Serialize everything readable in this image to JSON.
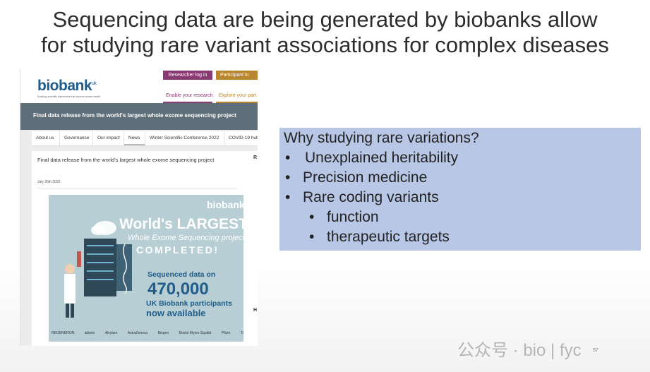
{
  "slide": {
    "title_line1": "Sequencing data are being generated by biobanks allow",
    "title_line2": "for studying rare variant associations for complex diseases",
    "page_number": "57"
  },
  "website": {
    "logo": "biobank",
    "logo_sup": "uk",
    "tagline": "Enabling scientific discoveries that improve human health",
    "researcher_login": "Researcher log in",
    "participant_login": "Participant lo",
    "enable_research": "Enable your research",
    "explore_participation": "Explore your part",
    "banner_title": "Final data release from the world's largest whole exome sequencing project",
    "nav": [
      "About us",
      "Governance",
      "Our impact",
      "News",
      "Winter Scientific Conference 2022",
      "COVID-19 hub"
    ],
    "article_title": "Final data release from the world's largest whole exome sequencing project",
    "article_date": "July 26th 2022",
    "sidebar_letters": [
      "R",
      "H"
    ],
    "promo": {
      "logo": "biobank",
      "line1": "World's LARGEST",
      "line2": "Whole Exome Sequencing project",
      "line3": "COMPLETED!",
      "line4": "Sequenced data on",
      "line5": "470,000",
      "line6": "UK Biobank participants",
      "line7": "now available",
      "sponsors": [
        "REGENERON",
        "abbvie",
        "Alnylam",
        "AstraZeneca",
        "Biogen",
        "Bristol Myers Squibb",
        "Pfizer",
        "Takeda"
      ]
    }
  },
  "questions": {
    "heading": "Why studying rare variations?",
    "items": [
      {
        "text": "Unexplained heritability",
        "level": 1
      },
      {
        "text": "Precision medicine",
        "level": 1
      },
      {
        "text": "Rare coding variants",
        "level": 1
      },
      {
        "text": "function",
        "level": 2
      },
      {
        "text": "therapeutic targets",
        "level": 2
      }
    ],
    "bullet": "•",
    "colors": {
      "box": "#b9c7e6"
    }
  },
  "watermark": "公众号 · bio | fyc"
}
